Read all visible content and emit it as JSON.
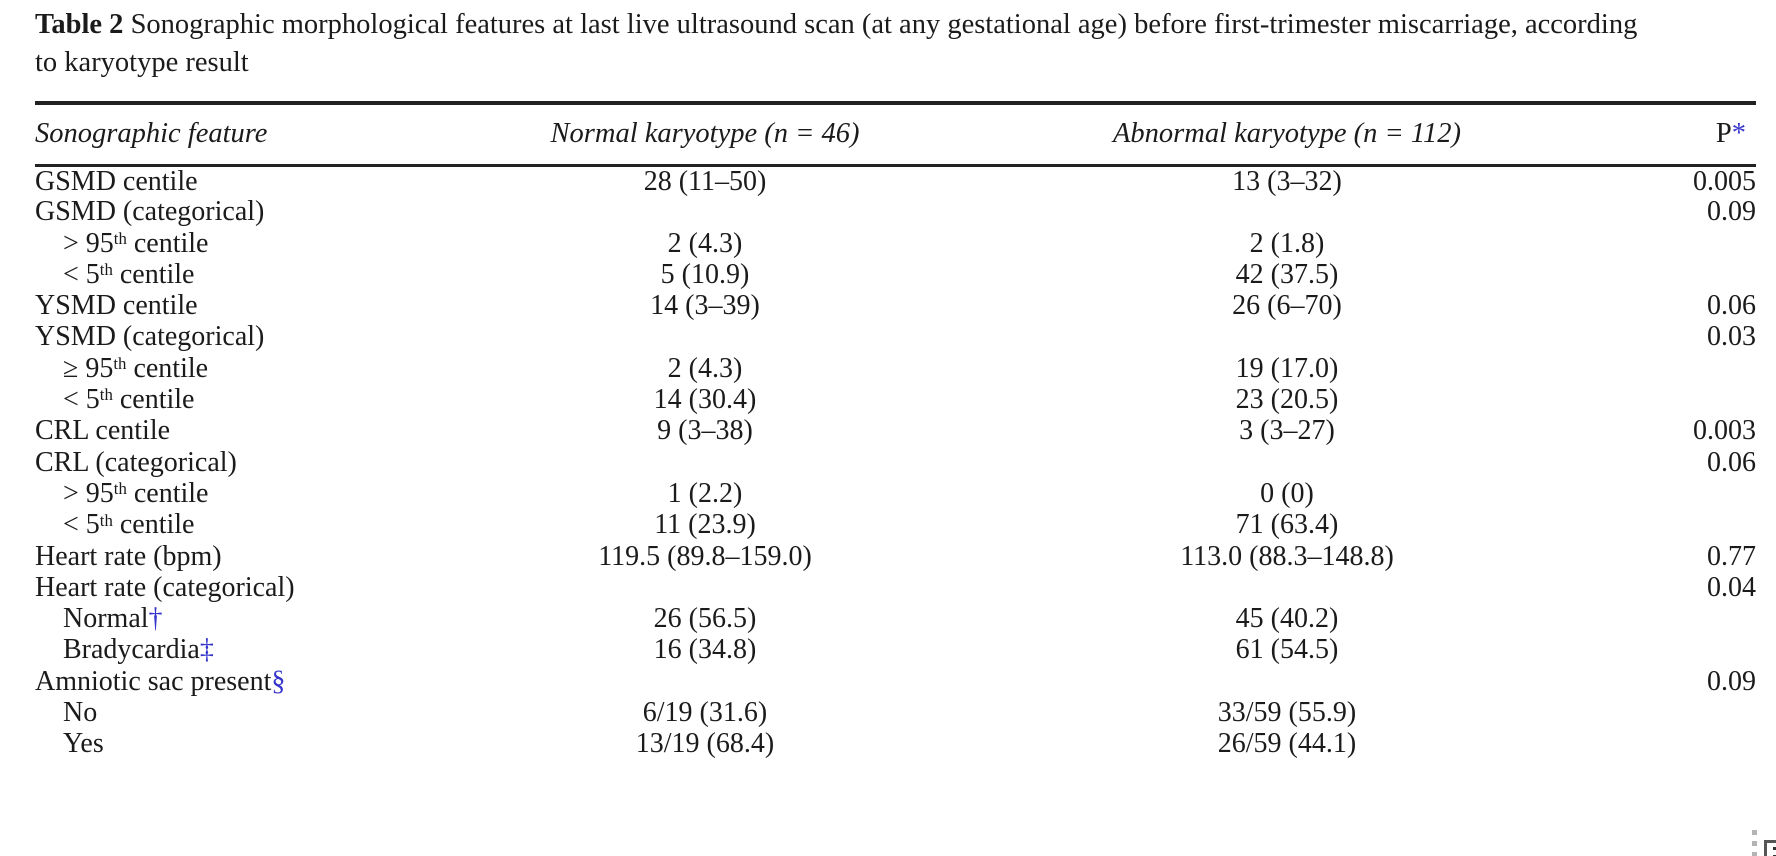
{
  "title": {
    "label": "Table 2",
    "line1": " Sonographic morphological features at last live ultrasound scan (at any gestational age) before first-trimester miscarriage, according",
    "line2": "to karyotype result"
  },
  "colors": {
    "text": "#1b1b1b",
    "rule": "#222222",
    "accent_blue": "#3434cc"
  },
  "decorations": {
    "dotted_handle_icon": "dotted-handle-icon",
    "frame_corner_icon": "frame-corner-icon"
  },
  "chart_data": {
    "type": "table",
    "title": "Table 2 Sonographic morphological features at last live ultrasound scan (at any gestational age) before first-trimester miscarriage, according to karyotype result",
    "columns": [
      "Sonographic feature",
      "Normal karyotype (n = 46)",
      "Abnormal karyotype (n = 112)",
      "P*"
    ],
    "rows": [
      [
        "GSMD centile",
        "28 (11–50)",
        "13 (3–32)",
        "0.005"
      ],
      [
        "GSMD (categorical)",
        "",
        "",
        "0.09"
      ],
      [
        "> 95th centile",
        "2 (4.3)",
        "2 (1.8)",
        ""
      ],
      [
        "< 5th centile",
        "5 (10.9)",
        "42 (37.5)",
        ""
      ],
      [
        "YSMD centile",
        "14 (3–39)",
        "26 (6–70)",
        "0.06"
      ],
      [
        "YSMD (categorical)",
        "",
        "",
        "0.03"
      ],
      [
        "≥ 95th centile",
        "2 (4.3)",
        "19 (17.0)",
        ""
      ],
      [
        "< 5th centile",
        "14 (30.4)",
        "23 (20.5)",
        ""
      ],
      [
        "CRL centile",
        "9 (3–38)",
        "3 (3–27)",
        "0.003"
      ],
      [
        "CRL (categorical)",
        "",
        "",
        "0.06"
      ],
      [
        "> 95th centile",
        "1 (2.2)",
        "0 (0)",
        ""
      ],
      [
        "< 5th centile",
        "11 (23.9)",
        "71 (63.4)",
        ""
      ],
      [
        "Heart rate (bpm)",
        "119.5 (89.8–159.0)",
        "113.0 (88.3–148.8)",
        "0.77"
      ],
      [
        "Heart rate (categorical)",
        "",
        "",
        "0.04"
      ],
      [
        "Normal†",
        "26 (56.5)",
        "45 (40.2)",
        ""
      ],
      [
        "Bradycardia‡",
        "16 (34.8)",
        "61 (54.5)",
        ""
      ],
      [
        "Amniotic sac present§",
        "",
        "",
        "0.09"
      ],
      [
        "No",
        "6/19 (31.6)",
        "33/59 (55.9)",
        ""
      ],
      [
        "Yes",
        "13/19 (68.4)",
        "26/59 (44.1)",
        ""
      ]
    ]
  },
  "table": {
    "columns": {
      "feature": "Sonographic feature",
      "normal": "Normal karyotype (n = 46)",
      "abnormal": "Abnormal karyotype (n = 112)",
      "p": "P",
      "p_marker": "*"
    },
    "rows": [
      {
        "feature_pre": "GSMD centile",
        "feature_sup": "",
        "feature_post": "",
        "symbol": "",
        "normal": "28 (11–50)",
        "abnormal": "13 (3–32)",
        "p": "0.005"
      },
      {
        "feature_pre": "GSMD (categorical)",
        "feature_sup": "",
        "feature_post": "",
        "symbol": "",
        "normal": "",
        "abnormal": "",
        "p": "0.09"
      },
      {
        "feature_pre": "> 95",
        "feature_sup": "th",
        "feature_post": " centile",
        "symbol": "",
        "normal": "2 (4.3)",
        "abnormal": "2 (1.8)",
        "p": ""
      },
      {
        "feature_pre": "< 5",
        "feature_sup": "th",
        "feature_post": " centile",
        "symbol": "",
        "normal": "5 (10.9)",
        "abnormal": "42 (37.5)",
        "p": ""
      },
      {
        "feature_pre": "YSMD centile",
        "feature_sup": "",
        "feature_post": "",
        "symbol": "",
        "normal": "14 (3–39)",
        "abnormal": "26 (6–70)",
        "p": "0.06"
      },
      {
        "feature_pre": "YSMD (categorical)",
        "feature_sup": "",
        "feature_post": "",
        "symbol": "",
        "normal": "",
        "abnormal": "",
        "p": "0.03"
      },
      {
        "feature_pre": "≥ 95",
        "feature_sup": "th",
        "feature_post": " centile",
        "symbol": "",
        "normal": "2 (4.3)",
        "abnormal": "19 (17.0)",
        "p": ""
      },
      {
        "feature_pre": "< 5",
        "feature_sup": "th",
        "feature_post": " centile",
        "symbol": "",
        "normal": "14 (30.4)",
        "abnormal": "23 (20.5)",
        "p": ""
      },
      {
        "feature_pre": "CRL centile",
        "feature_sup": "",
        "feature_post": "",
        "symbol": "",
        "normal": "9 (3–38)",
        "abnormal": "3 (3–27)",
        "p": "0.003"
      },
      {
        "feature_pre": "CRL (categorical)",
        "feature_sup": "",
        "feature_post": "",
        "symbol": "",
        "normal": "",
        "abnormal": "",
        "p": "0.06"
      },
      {
        "feature_pre": "> 95",
        "feature_sup": "th",
        "feature_post": " centile",
        "symbol": "",
        "normal": "1 (2.2)",
        "abnormal": "0 (0)",
        "p": ""
      },
      {
        "feature_pre": "< 5",
        "feature_sup": "th",
        "feature_post": " centile",
        "symbol": "",
        "normal": "11 (23.9)",
        "abnormal": "71 (63.4)",
        "p": ""
      },
      {
        "feature_pre": "Heart rate (bpm)",
        "feature_sup": "",
        "feature_post": "",
        "symbol": "",
        "normal": "119.5 (89.8–159.0)",
        "abnormal": "113.0 (88.3–148.8)",
        "p": "0.77"
      },
      {
        "feature_pre": "Heart rate (categorical)",
        "feature_sup": "",
        "feature_post": "",
        "symbol": "",
        "normal": "",
        "abnormal": "",
        "p": "0.04"
      },
      {
        "feature_pre": "Normal",
        "feature_sup": "",
        "feature_post": "",
        "symbol": "†",
        "normal": "26 (56.5)",
        "abnormal": "45 (40.2)",
        "p": ""
      },
      {
        "feature_pre": "Bradycardia",
        "feature_sup": "",
        "feature_post": "",
        "symbol": "‡",
        "normal": "16 (34.8)",
        "abnormal": "61 (54.5)",
        "p": ""
      },
      {
        "feature_pre": "Amniotic sac present",
        "feature_sup": "",
        "feature_post": "",
        "symbol": "§",
        "normal": "",
        "abnormal": "",
        "p": "0.09"
      },
      {
        "feature_pre": "No",
        "feature_sup": "",
        "feature_post": "",
        "symbol": "",
        "normal": "6/19 (31.6)",
        "abnormal": "33/59 (55.9)",
        "p": ""
      },
      {
        "feature_pre": "Yes",
        "feature_sup": "",
        "feature_post": "",
        "symbol": "",
        "normal": "13/19 (68.4)",
        "abnormal": "26/59 (44.1)",
        "p": ""
      }
    ]
  }
}
